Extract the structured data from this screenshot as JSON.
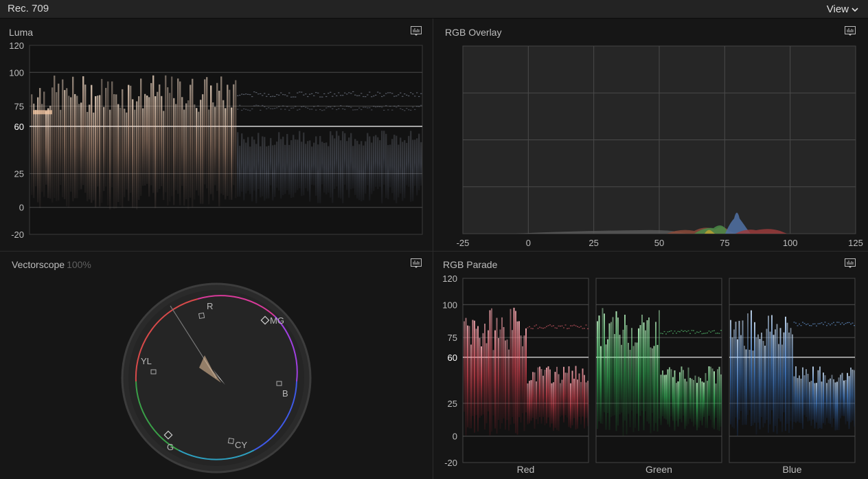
{
  "window": {
    "title": "Rec. 709",
    "view_label": "View"
  },
  "panels": {
    "luma": {
      "title": "Luma",
      "y_ticks": [
        "120",
        "100",
        "75",
        "60",
        "25",
        "0",
        "-20"
      ]
    },
    "rgb_overlay": {
      "title": "RGB Overlay",
      "x_ticks": [
        "-25",
        "0",
        "25",
        "50",
        "75",
        "100",
        "125"
      ]
    },
    "vectorscope": {
      "title": "Vectorscope",
      "zoom": "100%",
      "targets": [
        "R",
        "MG",
        "YL",
        "B",
        "G",
        "CY"
      ]
    },
    "rgb_parade": {
      "title": "RGB Parade",
      "y_ticks": [
        "120",
        "100",
        "75",
        "60",
        "25",
        "0",
        "-20"
      ],
      "channels": [
        "Red",
        "Green",
        "Blue"
      ]
    }
  },
  "colors": {
    "red": "#ff5a6a",
    "green": "#4ef07a",
    "blue": "#5aa8ff",
    "luma_warm": "#ffd9b8",
    "luma_cool": "#a8b4cc"
  },
  "icons": [
    "chevron-down-icon",
    "scope-settings-icon"
  ]
}
